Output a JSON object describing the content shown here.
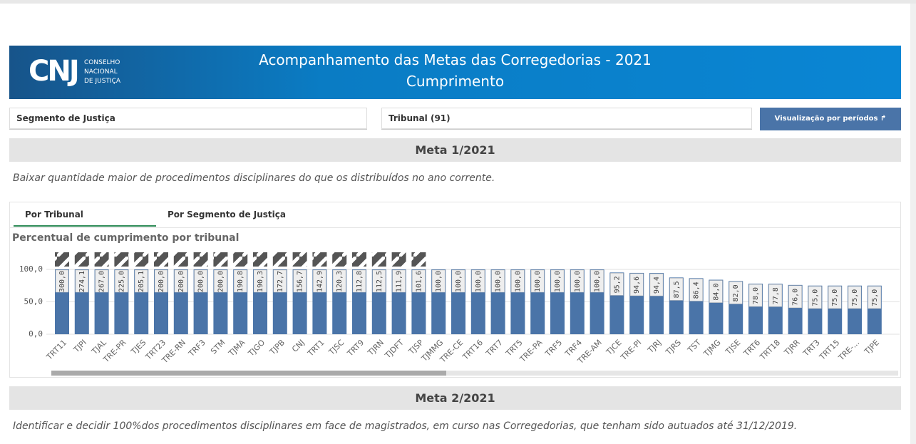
{
  "header": {
    "logo": "CNJ",
    "logo_text": [
      "CONSELHO",
      "NACIONAL",
      "DE JUSTIÇA"
    ],
    "title": "Acompanhamento das Metas das Corregedorias - 2021",
    "subtitle": "Cumprimento"
  },
  "filters": {
    "segment": "Segmento de Justiça",
    "tribunal": "Tribunal (91)",
    "button": "Visualização por períodos"
  },
  "meta1": {
    "title": "Meta 1/2021",
    "description": "Baixar quantidade maior de procedimentos disciplinares do que os distribuídos no ano corrente."
  },
  "tabs": [
    "Por Tribunal",
    "Por Segmento de Justiça"
  ],
  "chart_data": {
    "type": "bar",
    "title": "Percentual de cumprimento por tribunal",
    "categories": [
      "TRT11",
      "TJPI",
      "TJAL",
      "TRE-PR",
      "TJES",
      "TRT23",
      "TRE-RN",
      "TRF3",
      "STM",
      "TJMA",
      "TJGO",
      "TJPB",
      "CNJ",
      "TRT1",
      "TJSC",
      "TRT9",
      "TJRN",
      "TJDFT",
      "TJSP",
      "TJMMG",
      "TRE-CE",
      "TRT16",
      "TRT7",
      "TRT5",
      "TRE-PA",
      "TRF5",
      "TRF4",
      "TRE-AM",
      "TJCE",
      "TRE-PI",
      "TJRJ",
      "TJRS",
      "TST",
      "TJMG",
      "TJSE",
      "TRT6",
      "TRT18",
      "TJRR",
      "TRT3",
      "TRT15",
      "TRE-...",
      "TJPE"
    ],
    "values": [
      300,
      274.1,
      267,
      225,
      205.1,
      200,
      200,
      200,
      200,
      190.8,
      190.3,
      172.7,
      156.7,
      142.9,
      120.3,
      112.8,
      112.5,
      111.9,
      101.6,
      100,
      100,
      100,
      100,
      100,
      100,
      100,
      100,
      100,
      95.2,
      94.6,
      94.4,
      87.5,
      86.4,
      84,
      82,
      78,
      77.8,
      76,
      75,
      75,
      75,
      75
    ],
    "value_labels": [
      "300,0",
      "274,1",
      "267,0",
      "225,0",
      "205,1",
      "200,0",
      "200,0",
      "200,0",
      "200,0",
      "190,8",
      "190,3",
      "172,7",
      "156,7",
      "142,9",
      "120,3",
      "112,8",
      "112,5",
      "111,9",
      "101,6",
      "100,0",
      "100,0",
      "100,0",
      "100,0",
      "100,0",
      "100,0",
      "100,0",
      "100,0",
      "100,0",
      "95,2",
      "94,6",
      "94,4",
      "87,5",
      "86,4",
      "84,0",
      "82,0",
      "78,0",
      "77,8",
      "76,0",
      "75,0",
      "75,0",
      "75,0",
      "75,0"
    ],
    "color": "#4a74a8",
    "ylim": [
      0,
      100
    ],
    "yticks": [
      {
        "value": 0,
        "label": "0,0"
      },
      {
        "value": 50,
        "label": "50,0"
      },
      {
        "value": 100,
        "label": "100,0"
      }
    ],
    "grid": true
  },
  "meta2": {
    "title": "Meta 2/2021",
    "description": "Identificar e decidir 100%dos procedimentos disciplinares em face de magistrados, em curso nas Corregedorias, que tenham sido autuados até 31/12/2019."
  }
}
